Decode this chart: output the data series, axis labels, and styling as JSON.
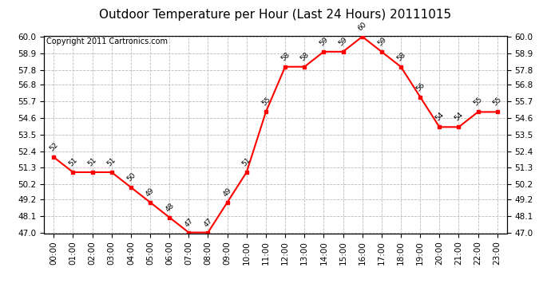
{
  "title": "Outdoor Temperature per Hour (Last 24 Hours) 20111015",
  "copyright": "Copyright 2011 Cartronics.com",
  "hours": [
    "00:00",
    "01:00",
    "02:00",
    "03:00",
    "04:00",
    "05:00",
    "06:00",
    "07:00",
    "08:00",
    "09:00",
    "10:00",
    "11:00",
    "12:00",
    "13:00",
    "14:00",
    "15:00",
    "16:00",
    "17:00",
    "18:00",
    "19:00",
    "20:00",
    "21:00",
    "22:00",
    "23:00"
  ],
  "temps": [
    52,
    51,
    51,
    51,
    50,
    49,
    48,
    47,
    47,
    49,
    51,
    55,
    58,
    58,
    59,
    59,
    60,
    59,
    58,
    56,
    54,
    54,
    55,
    55
  ],
  "ylim_min": 47.0,
  "ylim_max": 60.0,
  "yticks": [
    47.0,
    48.1,
    49.2,
    50.2,
    51.3,
    52.4,
    53.5,
    54.6,
    55.7,
    56.8,
    57.8,
    58.9,
    60.0
  ],
  "line_color": "red",
  "marker": "s",
  "marker_size": 3,
  "bg_color": "white",
  "grid_color": "#bbbbbb",
  "title_fontsize": 11,
  "copyright_fontsize": 7,
  "label_fontsize": 6.5,
  "tick_fontsize": 7.5,
  "ytick_fontsize": 7.5
}
